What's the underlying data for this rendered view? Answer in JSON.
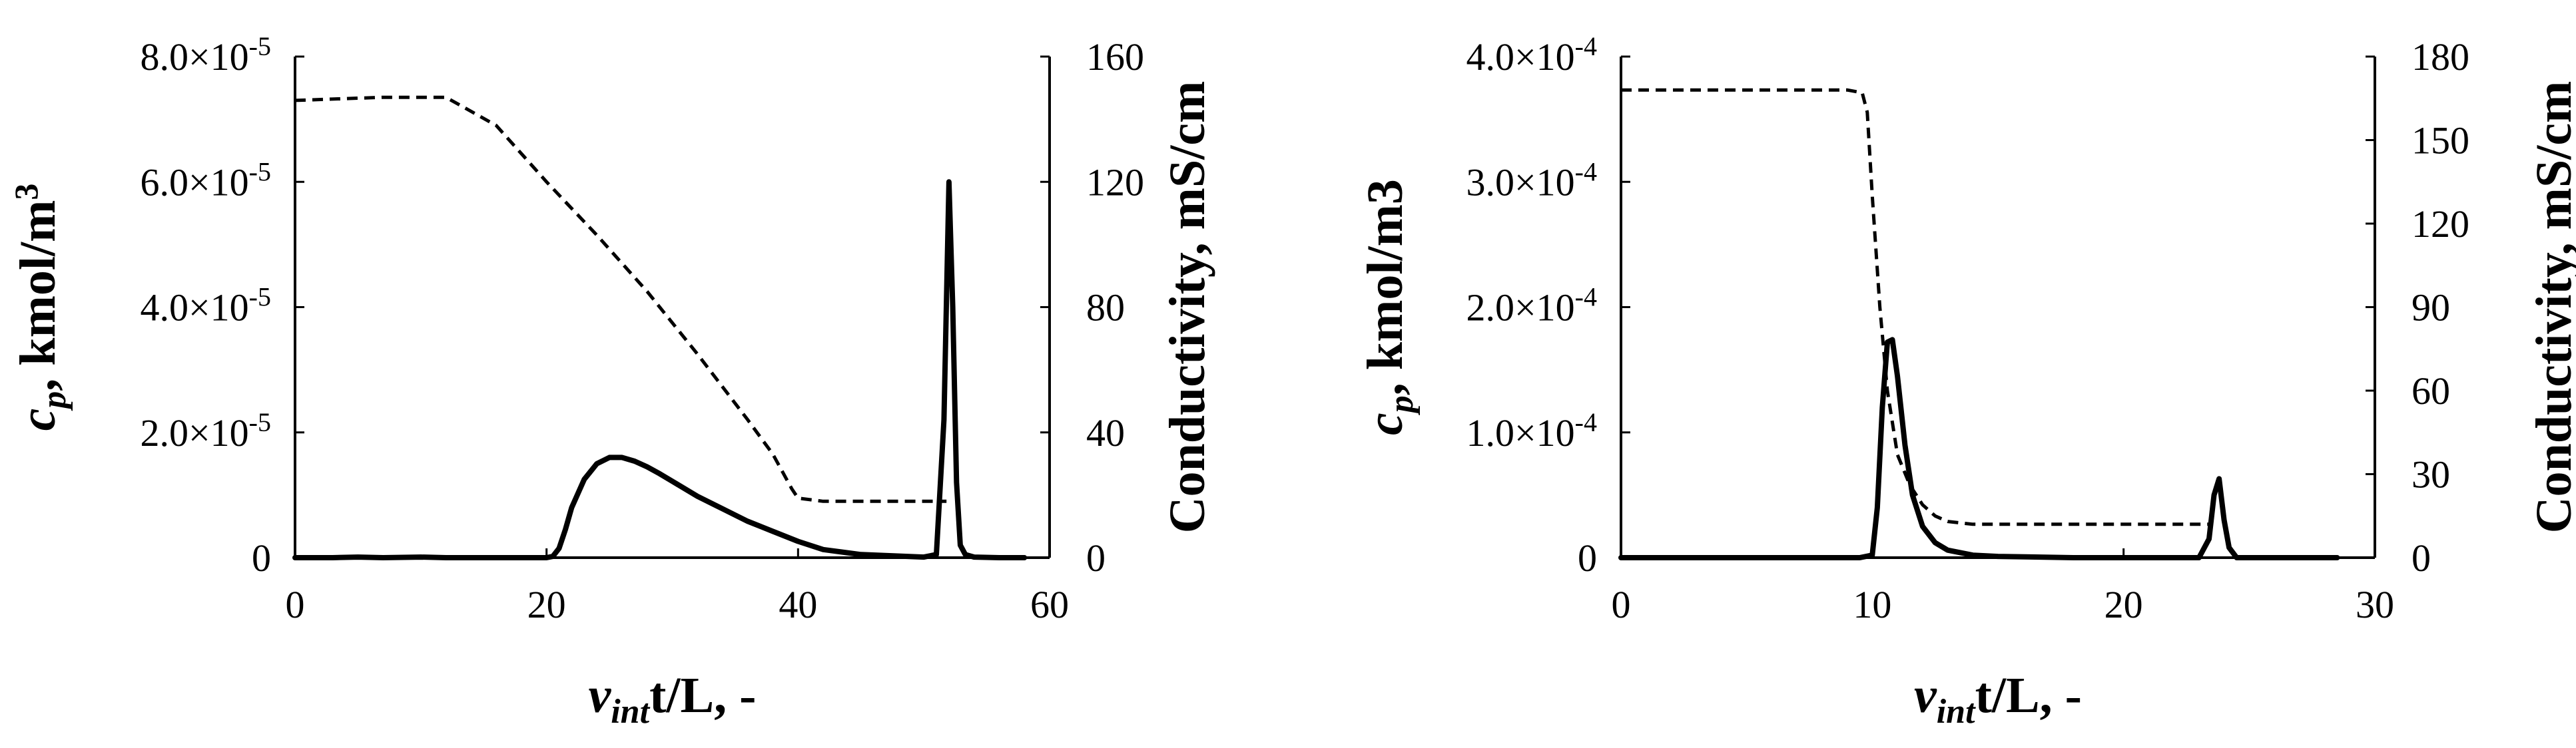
{
  "chart_data": [
    {
      "type": "line",
      "x_ticks": [
        "0",
        "20",
        "40",
        "60"
      ],
      "xlim": [
        0,
        60
      ],
      "y_left_ticks": [
        {
          "value": 0,
          "mantissa": "0",
          "exponent": ""
        },
        {
          "value": 2e-05,
          "mantissa": "2.0×10",
          "exponent": "-5"
        },
        {
          "value": 4e-05,
          "mantissa": "4.0×10",
          "exponent": "-5"
        },
        {
          "value": 6e-05,
          "mantissa": "6.0×10",
          "exponent": "-5"
        },
        {
          "value": 8e-05,
          "mantissa": "8.0×10",
          "exponent": "-5"
        }
      ],
      "ylim_left": [
        0,
        8e-05
      ],
      "y_right_ticks": [
        "0",
        "40",
        "80",
        "120",
        "160"
      ],
      "ylim_right": [
        0,
        160
      ],
      "xlabel": {
        "v": "v",
        "sub": "int",
        "rest": "t/L, -"
      },
      "ylabel_left": {
        "c": "c",
        "sub": "p",
        "rest": ", kmol/m",
        "sup": "3"
      },
      "ylabel_right": "Conductivity, mS/cm",
      "series": [
        {
          "style": "solid",
          "axis": "left",
          "x": [
            0,
            3,
            5,
            7,
            10,
            12,
            15,
            20,
            20.5,
            21,
            21.5,
            22,
            23,
            24,
            25,
            26,
            27,
            28,
            29,
            30,
            32,
            34,
            36,
            38,
            40,
            42,
            45,
            50,
            51,
            51.6,
            52,
            52.3,
            52.6,
            52.9,
            53.3,
            54,
            56,
            58
          ],
          "y": [
            0,
            0,
            1e-07,
            0,
            1e-07,
            0,
            0,
            0,
            2e-07,
            1.5e-06,
            4.5e-06,
            8e-06,
            1.25e-05,
            1.5e-05,
            1.6e-05,
            1.6e-05,
            1.54e-05,
            1.45e-05,
            1.34e-05,
            1.22e-05,
            9.8e-06,
            7.8e-06,
            5.8e-06,
            4.2e-06,
            2.6e-06,
            1.3e-06,
            5e-07,
            1e-07,
            5e-07,
            2.2e-05,
            6e-05,
            4e-05,
            1.2e-05,
            2e-06,
            5e-07,
            1e-07,
            0,
            0
          ]
        },
        {
          "style": "dashed",
          "axis": "right",
          "x": [
            0,
            7,
            12,
            16,
            20,
            24,
            28,
            32,
            36,
            38,
            39.5,
            40,
            42,
            46,
            50,
            51,
            51.8
          ],
          "y": [
            146,
            147,
            147,
            138,
            120,
            103,
            85,
            65,
            44,
            33,
            22,
            19,
            18,
            18,
            18,
            18,
            18
          ]
        }
      ]
    },
    {
      "type": "line",
      "x_ticks": [
        "0",
        "10",
        "20",
        "30"
      ],
      "xlim": [
        0,
        30
      ],
      "y_left_ticks": [
        {
          "value": 0,
          "mantissa": "0",
          "exponent": ""
        },
        {
          "value": 0.0001,
          "mantissa": "1.0×10",
          "exponent": "-4"
        },
        {
          "value": 0.0002,
          "mantissa": "2.0×10",
          "exponent": "-4"
        },
        {
          "value": 0.0003,
          "mantissa": "3.0×10",
          "exponent": "-4"
        },
        {
          "value": 0.0004,
          "mantissa": "4.0×10",
          "exponent": "-4"
        }
      ],
      "ylim_left": [
        0,
        0.0004
      ],
      "y_right_ticks": [
        "0",
        "30",
        "60",
        "90",
        "120",
        "150",
        "180"
      ],
      "ylim_right": [
        0,
        180
      ],
      "xlabel": {
        "v": "v",
        "sub": "int",
        "rest": "t/L, -"
      },
      "ylabel_left": {
        "c": "c",
        "sub": "p",
        "rest": ", kmol/m3",
        "sup": ""
      },
      "ylabel_right": "Conductivity, mS/cm",
      "series": [
        {
          "style": "solid",
          "axis": "left",
          "x": [
            0,
            5,
            9.5,
            10,
            10.2,
            10.4,
            10.6,
            10.8,
            11,
            11.3,
            11.6,
            12,
            12.5,
            13,
            14,
            15,
            18,
            23,
            23.4,
            23.6,
            23.8,
            24,
            24.2,
            24.5,
            26,
            28.5
          ],
          "y": [
            0,
            0,
            0,
            2e-06,
            4e-05,
            0.00012,
            0.000172,
            0.000174,
            0.000145,
            9e-05,
            5e-05,
            2.5e-05,
            1.2e-05,
            6e-06,
            2e-06,
            1e-06,
            0,
            0,
            1.5e-05,
            5e-05,
            6.3e-05,
            3e-05,
            8e-06,
            0,
            0,
            0
          ]
        },
        {
          "style": "dashed",
          "axis": "right",
          "x": [
            0,
            3,
            9,
            9.6,
            9.8,
            10,
            10.3,
            10.6,
            11,
            11.5,
            12,
            12.5,
            13,
            14,
            16,
            20,
            23.5
          ],
          "y": [
            168,
            168,
            168,
            167,
            160,
            130,
            90,
            60,
            37,
            26,
            19,
            15,
            13,
            12,
            12,
            12,
            12
          ]
        }
      ]
    }
  ]
}
